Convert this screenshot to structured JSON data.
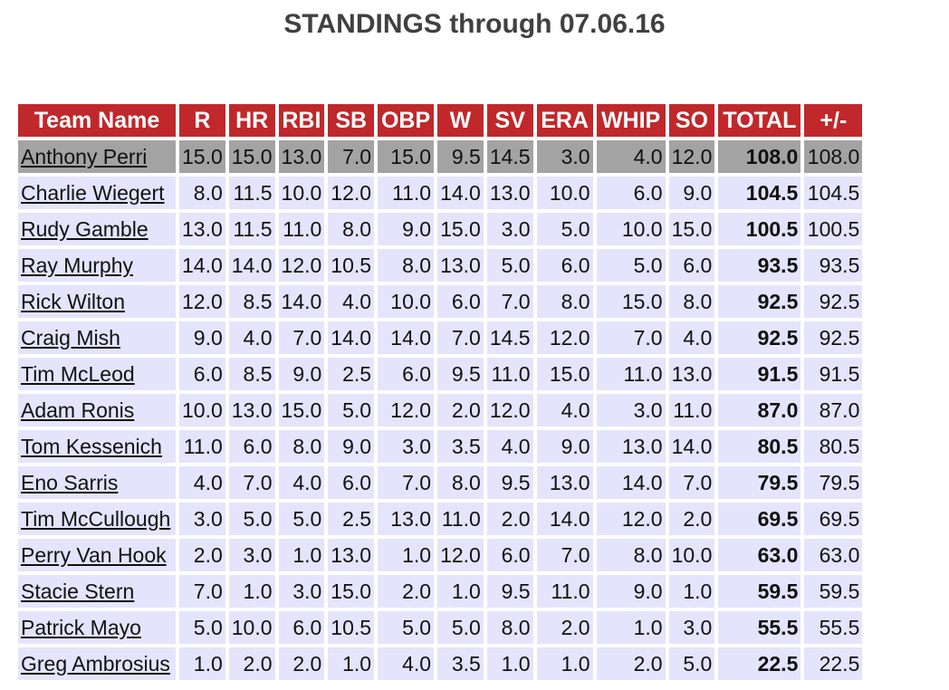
{
  "title": "STANDINGS through 07.06.16",
  "columns": [
    "Team Name",
    "R",
    "HR",
    "RBI",
    "SB",
    "OBP",
    "W",
    "SV",
    "ERA",
    "WHIP",
    "SO",
    "TOTAL",
    "+/-"
  ],
  "colors": {
    "header_bg": "#c0282b",
    "header_text": "#ffffff",
    "row_bg": "#e4e4fc",
    "leader_row_bg": "#a3a3a3",
    "title_text": "#404040"
  },
  "rows": [
    {
      "team": "Anthony Perri",
      "values": [
        "15.0",
        "15.0",
        "13.0",
        "7.0",
        "15.0",
        "9.5",
        "14.5",
        "3.0",
        "4.0",
        "12.0"
      ],
      "total": "108.0",
      "diff": "108.0"
    },
    {
      "team": "Charlie Wiegert",
      "values": [
        "8.0",
        "11.5",
        "10.0",
        "12.0",
        "11.0",
        "14.0",
        "13.0",
        "10.0",
        "6.0",
        "9.0"
      ],
      "total": "104.5",
      "diff": "104.5"
    },
    {
      "team": "Rudy Gamble",
      "values": [
        "13.0",
        "11.5",
        "11.0",
        "8.0",
        "9.0",
        "15.0",
        "3.0",
        "5.0",
        "10.0",
        "15.0"
      ],
      "total": "100.5",
      "diff": "100.5"
    },
    {
      "team": "Ray Murphy",
      "values": [
        "14.0",
        "14.0",
        "12.0",
        "10.5",
        "8.0",
        "13.0",
        "5.0",
        "6.0",
        "5.0",
        "6.0"
      ],
      "total": "93.5",
      "diff": "93.5"
    },
    {
      "team": "Rick Wilton",
      "values": [
        "12.0",
        "8.5",
        "14.0",
        "4.0",
        "10.0",
        "6.0",
        "7.0",
        "8.0",
        "15.0",
        "8.0"
      ],
      "total": "92.5",
      "diff": "92.5"
    },
    {
      "team": "Craig Mish",
      "values": [
        "9.0",
        "4.0",
        "7.0",
        "14.0",
        "14.0",
        "7.0",
        "14.5",
        "12.0",
        "7.0",
        "4.0"
      ],
      "total": "92.5",
      "diff": "92.5"
    },
    {
      "team": "Tim McLeod",
      "values": [
        "6.0",
        "8.5",
        "9.0",
        "2.5",
        "6.0",
        "9.5",
        "11.0",
        "15.0",
        "11.0",
        "13.0"
      ],
      "total": "91.5",
      "diff": "91.5"
    },
    {
      "team": "Adam Ronis",
      "values": [
        "10.0",
        "13.0",
        "15.0",
        "5.0",
        "12.0",
        "2.0",
        "12.0",
        "4.0",
        "3.0",
        "11.0"
      ],
      "total": "87.0",
      "diff": "87.0"
    },
    {
      "team": "Tom Kessenich",
      "values": [
        "11.0",
        "6.0",
        "8.0",
        "9.0",
        "3.0",
        "3.5",
        "4.0",
        "9.0",
        "13.0",
        "14.0"
      ],
      "total": "80.5",
      "diff": "80.5"
    },
    {
      "team": "Eno Sarris",
      "values": [
        "4.0",
        "7.0",
        "4.0",
        "6.0",
        "7.0",
        "8.0",
        "9.5",
        "13.0",
        "14.0",
        "7.0"
      ],
      "total": "79.5",
      "diff": "79.5"
    },
    {
      "team": "Tim McCullough",
      "values": [
        "3.0",
        "5.0",
        "5.0",
        "2.5",
        "13.0",
        "11.0",
        "2.0",
        "14.0",
        "12.0",
        "2.0"
      ],
      "total": "69.5",
      "diff": "69.5"
    },
    {
      "team": "Perry Van Hook",
      "values": [
        "2.0",
        "3.0",
        "1.0",
        "13.0",
        "1.0",
        "12.0",
        "6.0",
        "7.0",
        "8.0",
        "10.0"
      ],
      "total": "63.0",
      "diff": "63.0"
    },
    {
      "team": "Stacie Stern",
      "values": [
        "7.0",
        "1.0",
        "3.0",
        "15.0",
        "2.0",
        "1.0",
        "9.5",
        "11.0",
        "9.0",
        "1.0"
      ],
      "total": "59.5",
      "diff": "59.5"
    },
    {
      "team": "Patrick Mayo",
      "values": [
        "5.0",
        "10.0",
        "6.0",
        "10.5",
        "5.0",
        "5.0",
        "8.0",
        "2.0",
        "1.0",
        "3.0"
      ],
      "total": "55.5",
      "diff": "55.5"
    },
    {
      "team": "Greg Ambrosius",
      "values": [
        "1.0",
        "2.0",
        "2.0",
        "1.0",
        "4.0",
        "3.5",
        "1.0",
        "1.0",
        "2.0",
        "5.0"
      ],
      "total": "22.5",
      "diff": "22.5"
    }
  ]
}
